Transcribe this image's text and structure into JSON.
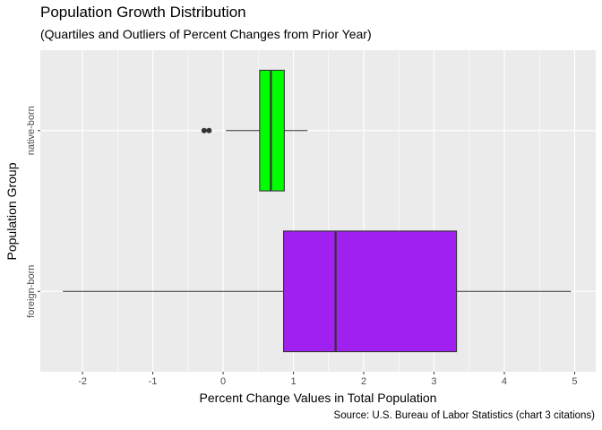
{
  "chart_data": {
    "type": "boxplot",
    "title": "Population Growth Distribution",
    "subtitle": "(Quartiles and Outliers of Percent Changes from Prior Year)",
    "xlabel": "Percent Change Values in Total Population",
    "ylabel": "Population Group",
    "caption": "Source: U.S. Bureau of Labor Statistics (chart 3 citations)",
    "xlim": [
      -2.6,
      5.3
    ],
    "xticks": [
      -2,
      -1,
      0,
      1,
      2,
      3,
      4,
      5
    ],
    "xtick_labels": [
      "-2",
      "-1",
      "0",
      "1",
      "2",
      "3",
      "4",
      "5"
    ],
    "grid": true,
    "categories": [
      "native-born",
      "foreign-born"
    ],
    "boxes": [
      {
        "category": "native-born",
        "whisker_low": 0.04,
        "q1": 0.52,
        "median": 0.68,
        "q3": 0.87,
        "whisker_high": 1.2,
        "outliers": [
          -0.27,
          -0.2
        ],
        "color": "#00FF00"
      },
      {
        "category": "foreign-born",
        "whisker_low": -2.28,
        "q1": 0.86,
        "median": 1.6,
        "q3": 3.32,
        "whisker_high": 4.95,
        "outliers": [],
        "color": "#A020F0"
      }
    ],
    "colors": {
      "panel": "#EBEBEB",
      "grid_major": "#FFFFFF",
      "outline": "#333333"
    }
  }
}
